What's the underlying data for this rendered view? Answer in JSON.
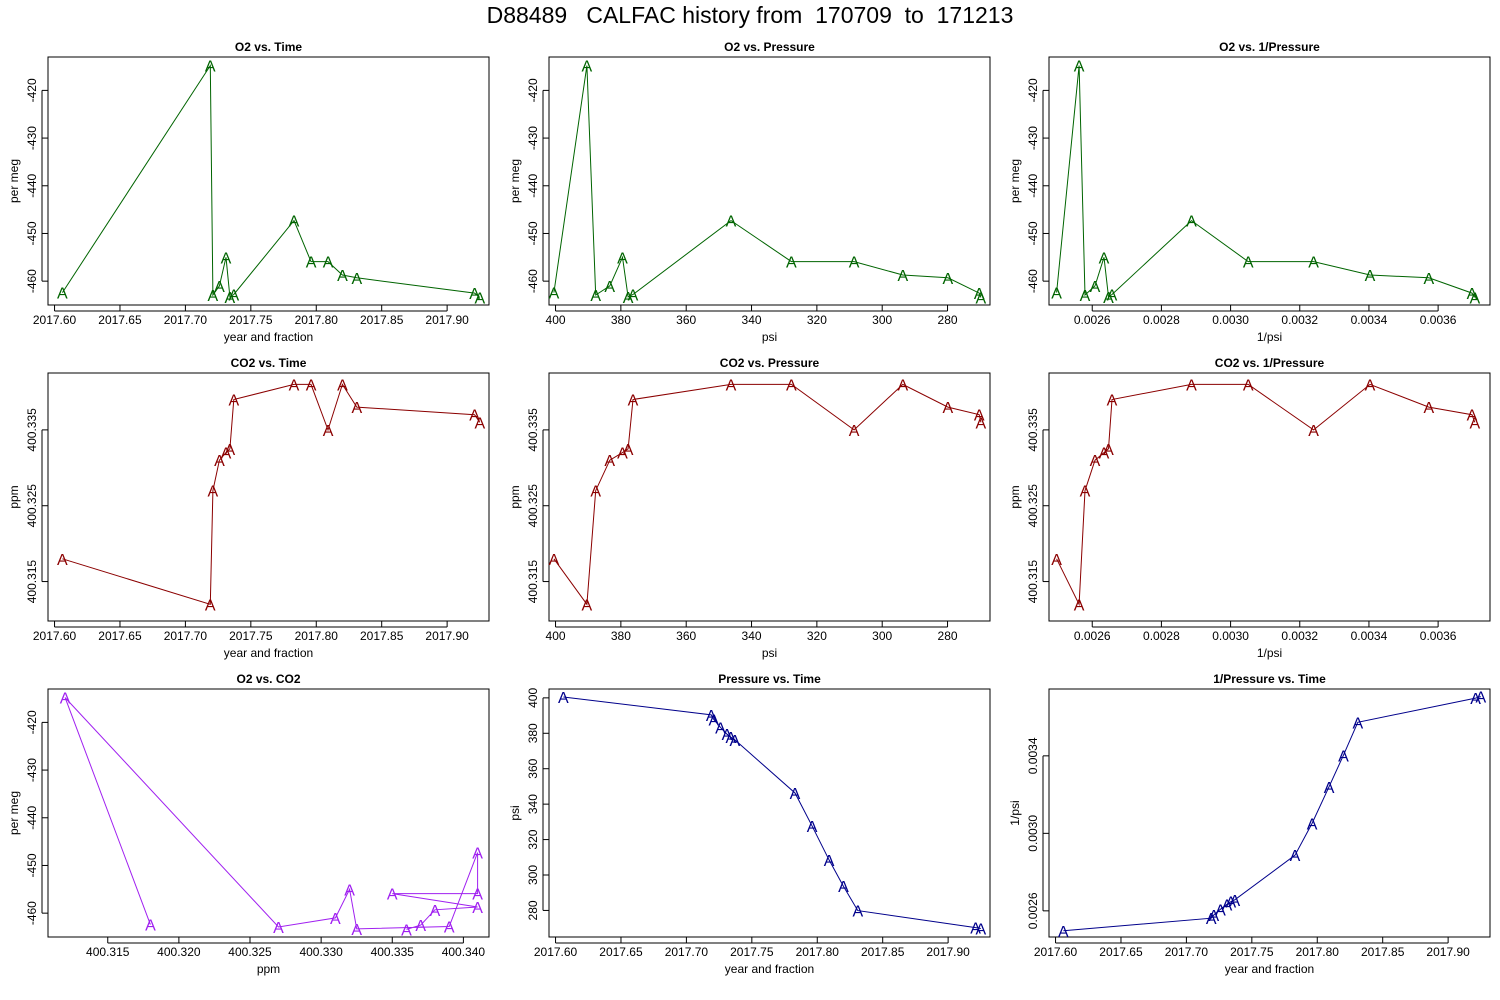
{
  "page_title": "D88489   CALFAC history from  170709  to  171213",
  "marker_label": "A",
  "chart_data": [
    {
      "type": "line",
      "title": "O2 vs. Time",
      "xlabel": "year and fraction",
      "ylabel": "per meg",
      "color": "#006400",
      "xlim": [
        2017.595,
        2017.932
      ],
      "ylim": [
        -465.0,
        -413.0
      ],
      "xticks": [
        "2017.60",
        "2017.65",
        "2017.70",
        "2017.75",
        "2017.80",
        "2017.85",
        "2017.90"
      ],
      "yticks": [
        "-420",
        "-430",
        "-440",
        "-450",
        "-460"
      ],
      "series": [
        {
          "x": [
            2017.606,
            2017.719,
            2017.721,
            2017.726,
            2017.731,
            2017.734,
            2017.737,
            2017.783,
            2017.796,
            2017.809,
            2017.82,
            2017.831,
            2017.921,
            2017.925
          ],
          "y": [
            -462.4,
            -414.8,
            -462.9,
            -461.0,
            -455.0,
            -463.3,
            -462.8,
            -447.3,
            -455.9,
            -455.9,
            -458.7,
            -459.3,
            -462.5,
            -463.4
          ]
        }
      ]
    },
    {
      "type": "line",
      "title": "O2 vs. Pressure",
      "xlabel": "psi",
      "ylabel": "per meg",
      "color": "#006400",
      "xlim": [
        402.0,
        267.0
      ],
      "ylim": [
        -465.0,
        -413.0
      ],
      "xticks": [
        "400",
        "380",
        "360",
        "340",
        "320",
        "300",
        "280"
      ],
      "yticks": [
        "-420",
        "-430",
        "-440",
        "-450",
        "-460"
      ],
      "series": [
        {
          "x": [
            400.5,
            390.4,
            387.7,
            383.4,
            379.5,
            377.8,
            376.3,
            346.3,
            327.8,
            308.6,
            293.7,
            279.9,
            270.3,
            269.8
          ],
          "y": [
            -462.4,
            -414.8,
            -462.9,
            -461.0,
            -455.0,
            -463.3,
            -462.8,
            -447.3,
            -455.9,
            -455.9,
            -458.7,
            -459.3,
            -462.5,
            -463.4
          ]
        }
      ]
    },
    {
      "type": "line",
      "title": "O2 vs. 1/Pressure",
      "xlabel": "1/psi",
      "ylabel": "per meg",
      "color": "#006400",
      "xlim": [
        0.002475,
        0.00375
      ],
      "ylim": [
        -465.0,
        -413.0
      ],
      "xticks": [
        "0.0026",
        "0.0028",
        "0.0030",
        "0.0032",
        "0.0034",
        "0.0036"
      ],
      "yticks": [
        "-420",
        "-430",
        "-440",
        "-450",
        "-460"
      ],
      "series": [
        {
          "x": [
            0.002497,
            0.002562,
            0.002579,
            0.002608,
            0.002634,
            0.002647,
            0.002657,
            0.002887,
            0.003051,
            0.00324,
            0.003403,
            0.003573,
            0.003698,
            0.003706
          ],
          "y": [
            -462.4,
            -414.8,
            -462.9,
            -461.0,
            -455.0,
            -463.3,
            -462.8,
            -447.3,
            -455.9,
            -455.9,
            -458.7,
            -459.3,
            -462.5,
            -463.4
          ]
        }
      ]
    },
    {
      "type": "line",
      "title": "CO2 vs. Time",
      "xlabel": "year and fraction",
      "ylabel": "ppm",
      "color": "#8b0000",
      "xlim": [
        2017.595,
        2017.932
      ],
      "ylim": [
        400.3098,
        400.3425
      ],
      "xticks": [
        "2017.60",
        "2017.65",
        "2017.70",
        "2017.75",
        "2017.80",
        "2017.85",
        "2017.90"
      ],
      "yticks": [
        "400.315",
        "400.325",
        "400.335"
      ],
      "series": [
        {
          "x": [
            2017.606,
            2017.719,
            2017.721,
            2017.726,
            2017.731,
            2017.734,
            2017.737,
            2017.783,
            2017.796,
            2017.809,
            2017.82,
            2017.831,
            2017.921,
            2017.925
          ],
          "y": [
            400.318,
            400.312,
            400.327,
            400.331,
            400.332,
            400.3325,
            400.339,
            400.341,
            400.341,
            400.335,
            400.341,
            400.338,
            400.337,
            400.336
          ]
        }
      ]
    },
    {
      "type": "line",
      "title": "CO2 vs. Pressure",
      "xlabel": "psi",
      "ylabel": "ppm",
      "color": "#8b0000",
      "xlim": [
        402.0,
        267.0
      ],
      "ylim": [
        400.3098,
        400.3425
      ],
      "xticks": [
        "400",
        "380",
        "360",
        "340",
        "320",
        "300",
        "280"
      ],
      "yticks": [
        "400.315",
        "400.325",
        "400.335"
      ],
      "series": [
        {
          "x": [
            400.5,
            390.4,
            387.7,
            383.4,
            379.5,
            377.8,
            376.3,
            346.3,
            327.8,
            308.6,
            293.7,
            279.9,
            270.3,
            269.8
          ],
          "y": [
            400.318,
            400.312,
            400.327,
            400.331,
            400.332,
            400.3325,
            400.339,
            400.341,
            400.341,
            400.335,
            400.341,
            400.338,
            400.337,
            400.336
          ]
        }
      ]
    },
    {
      "type": "line",
      "title": "CO2 vs. 1/Pressure",
      "xlabel": "1/psi",
      "ylabel": "ppm",
      "color": "#8b0000",
      "xlim": [
        0.002475,
        0.00375
      ],
      "ylim": [
        400.3098,
        400.3425
      ],
      "xticks": [
        "0.0026",
        "0.0028",
        "0.0030",
        "0.0032",
        "0.0034",
        "0.0036"
      ],
      "yticks": [
        "400.315",
        "400.325",
        "400.335"
      ],
      "series": [
        {
          "x": [
            0.002497,
            0.002562,
            0.002579,
            0.002608,
            0.002634,
            0.002647,
            0.002657,
            0.002887,
            0.003051,
            0.00324,
            0.003403,
            0.003573,
            0.003698,
            0.003706
          ],
          "y": [
            400.318,
            400.312,
            400.327,
            400.331,
            400.332,
            400.3325,
            400.339,
            400.341,
            400.341,
            400.335,
            400.341,
            400.338,
            400.337,
            400.336
          ]
        }
      ]
    },
    {
      "type": "line",
      "title": "O2 vs. CO2",
      "xlabel": "ppm",
      "ylabel": "per meg",
      "color": "#a020f0",
      "xlim": [
        400.3108,
        400.3418
      ],
      "ylim": [
        -465.0,
        -413.0
      ],
      "xticks": [
        "400.315",
        "400.320",
        "400.325",
        "400.330",
        "400.335",
        "400.340"
      ],
      "yticks": [
        "-420",
        "-430",
        "-440",
        "-450",
        "-460"
      ],
      "series": [
        {
          "x": [
            400.318,
            400.312,
            400.327,
            400.331,
            400.332,
            400.3325,
            400.339,
            400.341,
            400.341,
            400.335,
            400.341,
            400.338,
            400.337,
            400.336
          ],
          "y": [
            -462.4,
            -414.8,
            -462.9,
            -461.0,
            -455.0,
            -463.3,
            -462.8,
            -447.3,
            -455.9,
            -455.9,
            -458.7,
            -459.3,
            -462.5,
            -463.4
          ]
        }
      ]
    },
    {
      "type": "line",
      "title": "Pressure vs. Time",
      "xlabel": "year and fraction",
      "ylabel": "psi",
      "color": "#00008b",
      "xlim": [
        2017.595,
        2017.932
      ],
      "ylim": [
        265.0,
        405.0
      ],
      "xticks": [
        "2017.60",
        "2017.65",
        "2017.70",
        "2017.75",
        "2017.80",
        "2017.85",
        "2017.90"
      ],
      "yticks": [
        "280",
        "300",
        "320",
        "340",
        "360",
        "380",
        "400"
      ],
      "series": [
        {
          "x": [
            2017.606,
            2017.719,
            2017.721,
            2017.726,
            2017.731,
            2017.734,
            2017.737,
            2017.783,
            2017.796,
            2017.809,
            2017.82,
            2017.831,
            2017.921,
            2017.925
          ],
          "y": [
            400.5,
            390.4,
            387.7,
            383.4,
            379.5,
            377.8,
            376.3,
            346.3,
            327.8,
            308.6,
            293.7,
            279.9,
            270.3,
            269.8
          ]
        }
      ]
    },
    {
      "type": "line",
      "title": "1/Pressure vs. Time",
      "xlabel": "year and fraction",
      "ylabel": "1/psi",
      "color": "#00008b",
      "xlim": [
        2017.595,
        2017.932
      ],
      "ylim": [
        0.002465,
        0.003745
      ],
      "xticks": [
        "2017.60",
        "2017.65",
        "2017.70",
        "2017.75",
        "2017.80",
        "2017.85",
        "2017.90"
      ],
      "yticks": [
        "0.0026",
        "0.0030",
        "0.0034"
      ],
      "series": [
        {
          "x": [
            2017.606,
            2017.719,
            2017.721,
            2017.726,
            2017.731,
            2017.734,
            2017.737,
            2017.783,
            2017.796,
            2017.809,
            2017.82,
            2017.831,
            2017.921,
            2017.925
          ],
          "y": [
            0.002497,
            0.002562,
            0.002579,
            0.002608,
            0.002634,
            0.002647,
            0.002657,
            0.002887,
            0.003051,
            0.00324,
            0.003403,
            0.003573,
            0.003698,
            0.003706
          ]
        }
      ]
    }
  ]
}
